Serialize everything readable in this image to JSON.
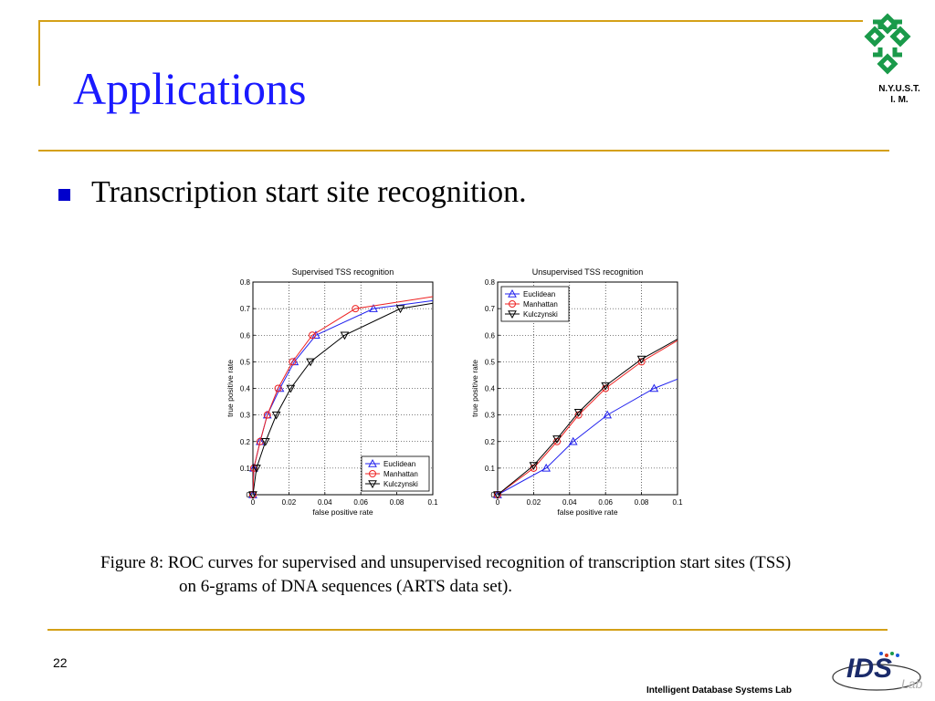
{
  "slide": {
    "title": "Applications",
    "bullet": "Transcription start site recognition.",
    "caption_line1": "Figure 8:  ROC curves for supervised and unsupervised recognition of transcription start sites (TSS)",
    "caption_line2": "on 6-grams of DNA sequences (ARTS data set).",
    "page_number": "22",
    "footer_lab": "Intelligent Database Systems Lab",
    "logo_top_text_1": "N.Y.U.S.T.",
    "logo_top_text_2": "I. M.",
    "accent_color": "#d4a017",
    "title_color": "#1a1aff"
  },
  "chart_data": [
    {
      "type": "line",
      "title": "Supervised TSS recognition",
      "xlabel": "false positive rate",
      "ylabel": "true positive rate",
      "xlim": [
        0,
        0.1
      ],
      "ylim": [
        0,
        0.8
      ],
      "xticks": [
        "0",
        "0.02",
        "0.04",
        "0.06",
        "0.08",
        "0.1"
      ],
      "yticks": [
        "0",
        "0.1",
        "0.2",
        "0.3",
        "0.4",
        "0.5",
        "0.6",
        "0.7",
        "0.8"
      ],
      "grid": true,
      "legend_position": "bottom-right",
      "series": [
        {
          "name": "Euclidean",
          "color": "#2222ee",
          "marker": "triangle-up",
          "x": [
            0,
            0.0005,
            0.004,
            0.008,
            0.015,
            0.023,
            0.035,
            0.067,
            0.1
          ],
          "y": [
            0,
            0.1,
            0.2,
            0.3,
            0.4,
            0.5,
            0.6,
            0.7,
            0.73
          ]
        },
        {
          "name": "Manhattan",
          "color": "#ee2222",
          "marker": "circle",
          "x": [
            0,
            0.0005,
            0.004,
            0.008,
            0.014,
            0.022,
            0.033,
            0.057,
            0.1
          ],
          "y": [
            0,
            0.1,
            0.2,
            0.3,
            0.4,
            0.5,
            0.6,
            0.7,
            0.745
          ]
        },
        {
          "name": "Kulczynski",
          "color": "#000000",
          "marker": "triangle-down",
          "x": [
            0,
            0.002,
            0.007,
            0.013,
            0.021,
            0.032,
            0.051,
            0.082,
            0.1
          ],
          "y": [
            0,
            0.1,
            0.2,
            0.3,
            0.4,
            0.5,
            0.6,
            0.7,
            0.72
          ]
        }
      ]
    },
    {
      "type": "line",
      "title": "Unsupervised TSS recognition",
      "xlabel": "false positive rate",
      "ylabel": "true positive rate",
      "xlim": [
        0,
        0.1
      ],
      "ylim": [
        0,
        0.8
      ],
      "xticks": [
        "0",
        "0.02",
        "0.04",
        "0.06",
        "0.08",
        "0.1"
      ],
      "yticks": [
        "0",
        "0.1",
        "0.2",
        "0.3",
        "0.4",
        "0.5",
        "0.6",
        "0.7",
        "0.8"
      ],
      "grid": true,
      "legend_position": "top-left",
      "series": [
        {
          "name": "Euclidean",
          "color": "#2222ee",
          "marker": "triangle-up",
          "x": [
            0,
            0.027,
            0.042,
            0.061,
            0.087,
            0.1
          ],
          "y": [
            0,
            0.1,
            0.2,
            0.3,
            0.4,
            0.435
          ]
        },
        {
          "name": "Manhattan",
          "color": "#ee2222",
          "marker": "circle",
          "x": [
            0,
            0.02,
            0.033,
            0.045,
            0.06,
            0.08,
            0.1
          ],
          "y": [
            0,
            0.1,
            0.2,
            0.3,
            0.4,
            0.5,
            0.58
          ]
        },
        {
          "name": "Kulczynski",
          "color": "#000000",
          "marker": "triangle-down",
          "x": [
            0,
            0.02,
            0.033,
            0.045,
            0.06,
            0.08,
            0.1
          ],
          "y": [
            0,
            0.11,
            0.21,
            0.31,
            0.41,
            0.51,
            0.585
          ]
        }
      ]
    }
  ]
}
